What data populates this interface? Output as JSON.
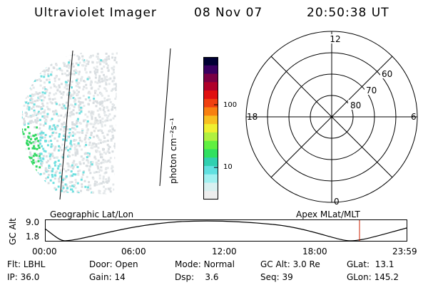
{
  "header": {
    "instrument": "Ultraviolet Imager",
    "date": "08 Nov 07",
    "time": "20:50:38 UT"
  },
  "colorbar": {
    "label": "photon cm⁻²s⁻¹",
    "ticks": [
      "100",
      "10"
    ],
    "colors": [
      "#000033",
      "#3a0060",
      "#7a0044",
      "#b0002a",
      "#e01010",
      "#f04010",
      "#f88010",
      "#f8c020",
      "#f0f030",
      "#b0f040",
      "#60f040",
      "#30e060",
      "#30d0b0",
      "#60e0e0",
      "#a0f0f0",
      "#d8f0f0",
      "#eeeeee"
    ]
  },
  "polar_plot": {
    "mlt_labels": [
      "12",
      "18",
      "6",
      "0"
    ],
    "lat_labels": [
      "60",
      "70",
      "80"
    ]
  },
  "orbit_plot": {
    "left_title": "Geographic Lat/Lon",
    "right_title": "Apex MLat/MLT",
    "y_axis_title": "GC Alt",
    "y_ticks": [
      "9.0",
      "1.8"
    ],
    "x_ticks": [
      "00:00",
      "06:00",
      "12:00",
      "18:00",
      "23:59"
    ],
    "cursor_color": "#cc2200"
  },
  "status": {
    "flt_label": "Flt:",
    "flt_value": "LBHL",
    "ip_label": "IP:",
    "ip_value": "36.0",
    "door_label": "Door:",
    "door_value": "Open",
    "gain_label": "Gain:",
    "gain_value": "14",
    "mode_label": "Mode:",
    "mode_value": "Normal",
    "dsp_label": "Dsp:",
    "dsp_value": "3.6",
    "gcalt_label": "GC Alt:",
    "gcalt_value": "3.0 Re",
    "seq_label": "Seq:",
    "seq_value": "39",
    "glat_label": "GLat:",
    "glat_value": "13.1",
    "glon_label": "GLon:",
    "glon_value": "145.2"
  }
}
